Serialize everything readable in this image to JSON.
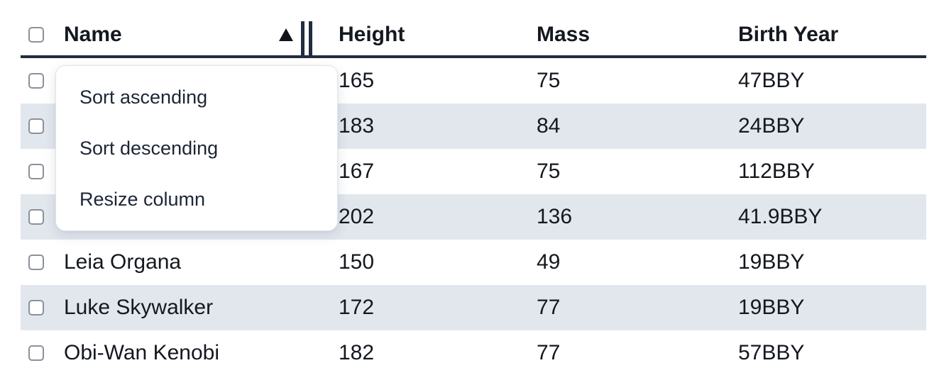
{
  "table": {
    "columns": [
      {
        "key": "name",
        "label": "Name"
      },
      {
        "key": "height",
        "label": "Height"
      },
      {
        "key": "mass",
        "label": "Mass"
      },
      {
        "key": "birth_year",
        "label": "Birth Year"
      }
    ],
    "sort": {
      "column": "Name",
      "direction": "ascending"
    },
    "rows": [
      {
        "name": "",
        "height": "165",
        "mass": "75",
        "birth_year": "47BBY"
      },
      {
        "name": "",
        "height": "183",
        "mass": "84",
        "birth_year": "24BBY"
      },
      {
        "name": "",
        "height": "167",
        "mass": "75",
        "birth_year": "112BBY"
      },
      {
        "name": "",
        "height": "202",
        "mass": "136",
        "birth_year": "41.9BBY"
      },
      {
        "name": "Leia Organa",
        "height": "150",
        "mass": "49",
        "birth_year": "19BBY"
      },
      {
        "name": "Luke Skywalker",
        "height": "172",
        "mass": "77",
        "birth_year": "19BBY"
      },
      {
        "name": "Obi-Wan Kenobi",
        "height": "182",
        "mass": "77",
        "birth_year": "57BBY"
      }
    ]
  },
  "context_menu": {
    "items": [
      {
        "label": "Sort ascending"
      },
      {
        "label": "Sort descending"
      },
      {
        "label": "Resize column"
      }
    ]
  },
  "icons": {
    "sort_indicator": "sort-ascending-triangle",
    "resize_handle": "column-resize-double-bar"
  },
  "colors": {
    "stripe_row": "#e2e7ee",
    "header_border": "#222d3e",
    "text": "#14181f",
    "menu_text": "#1d2636",
    "checkbox_border": "#8b919b",
    "menu_border": "#e2e5ea"
  }
}
